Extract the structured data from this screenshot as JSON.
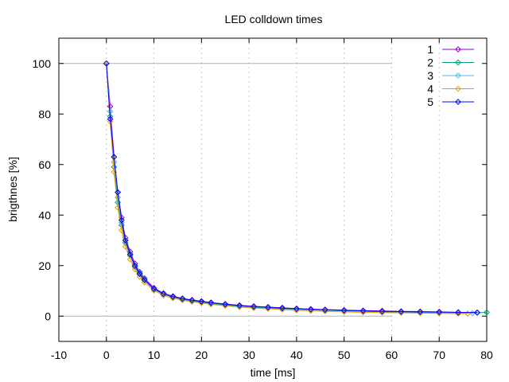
{
  "chart_data": {
    "type": "line",
    "title": "LED colldown times",
    "xlabel": "time [ms]",
    "ylabel": "brigthnes [%]",
    "xlim": [
      -10,
      80
    ],
    "ylim": [
      -10,
      110
    ],
    "xticks": [
      -10,
      0,
      10,
      20,
      30,
      40,
      50,
      60,
      70,
      80
    ],
    "yticks": [
      0,
      20,
      40,
      60,
      80,
      100
    ],
    "x_grid": "dotted",
    "y_reference_lines": [
      0,
      100
    ],
    "legend_position": "top-right",
    "marker": "diamond",
    "series": [
      {
        "name": "1",
        "color": "#9400d3",
        "x": [
          0,
          0.8,
          1.6,
          2.4,
          3.2,
          4.0,
          5.0,
          6.0,
          7.0,
          8.0,
          10,
          12,
          14,
          16,
          18,
          20,
          22,
          25,
          28,
          31,
          34,
          37,
          40,
          43,
          46,
          50,
          54,
          58,
          62,
          66,
          70,
          74,
          78
        ],
        "y": [
          100,
          83,
          63,
          49,
          39,
          31,
          25.5,
          20.8,
          17.5,
          15,
          11.2,
          9.1,
          7.9,
          7.0,
          6.4,
          5.9,
          5.4,
          4.8,
          4.3,
          3.9,
          3.6,
          3.3,
          3.0,
          2.8,
          2.6,
          2.4,
          2.2,
          2.1,
          1.9,
          1.8,
          1.7,
          1.5,
          1.4
        ]
      },
      {
        "name": "2",
        "color": "#009e73",
        "x": [
          0,
          0.8,
          1.6,
          2.4,
          3.2,
          4.0,
          5.0,
          6.0,
          7.0,
          8.0,
          10,
          12,
          14,
          16,
          18,
          20,
          22,
          25,
          28,
          31,
          34,
          37,
          40,
          43,
          46,
          50,
          54,
          58,
          62,
          66,
          70,
          74,
          80
        ],
        "y": [
          100,
          79,
          59,
          45,
          36,
          29,
          24,
          19.5,
          16.5,
          14.2,
          10.6,
          8.7,
          7.5,
          6.7,
          6.0,
          5.5,
          5.0,
          4.4,
          3.9,
          3.5,
          3.2,
          2.9,
          2.7,
          2.5,
          2.3,
          2.1,
          1.9,
          1.7,
          1.5,
          1.3,
          1.2,
          1.1,
          1.5
        ]
      },
      {
        "name": "3",
        "color": "#56b4e9",
        "x": [
          0,
          0.8,
          1.6,
          2.4,
          3.2,
          4.0,
          5.0,
          6.0,
          7.0,
          8.0,
          10,
          12,
          14,
          16,
          18,
          20,
          22,
          25,
          28,
          31,
          34,
          37,
          40,
          43,
          46,
          50,
          54,
          58,
          62,
          66,
          70,
          74,
          77
        ],
        "y": [
          100,
          81,
          61,
          47,
          37,
          30,
          24.5,
          20,
          17,
          14.6,
          10.9,
          8.9,
          7.7,
          6.9,
          6.2,
          5.7,
          5.2,
          4.6,
          4.1,
          3.7,
          3.4,
          3.1,
          2.8,
          2.6,
          2.4,
          2.2,
          2.0,
          1.8,
          1.7,
          1.6,
          1.4,
          1.3,
          1.2
        ]
      },
      {
        "name": "4",
        "color": "#e69f00",
        "x": [
          0,
          0.8,
          1.6,
          2.4,
          3.2,
          4.0,
          5.0,
          6.0,
          7.0,
          8.0,
          10,
          12,
          14,
          16,
          18,
          20,
          22,
          25,
          28,
          31,
          34,
          37,
          40,
          43,
          46,
          50,
          54,
          58,
          62,
          66,
          70,
          74,
          76
        ],
        "y": [
          100,
          77,
          57,
          43,
          34,
          27.5,
          22.5,
          18.5,
          15.6,
          13.4,
          10.1,
          8.2,
          7.1,
          6.3,
          5.7,
          5.2,
          4.7,
          4.1,
          3.6,
          3.2,
          2.9,
          2.6,
          2.3,
          2.1,
          1.9,
          1.7,
          1.5,
          1.4,
          1.3,
          1.2,
          1.1,
          1.0,
          1.0
        ]
      },
      {
        "name": "5",
        "color": "#0000ff",
        "x": [
          0,
          0.8,
          1.6,
          2.4,
          3.2,
          4.0,
          5.0,
          6.0,
          7.0,
          8.0,
          10,
          12,
          14,
          16,
          18,
          20,
          22,
          25,
          28,
          31,
          34,
          37,
          40,
          43,
          46,
          50,
          54,
          58,
          62,
          66,
          70,
          74,
          78
        ],
        "y": [
          100,
          78,
          63,
          49,
          38,
          30,
          24.5,
          20,
          16.8,
          14.4,
          10.8,
          8.8,
          7.7,
          6.9,
          6.3,
          5.8,
          5.3,
          4.7,
          4.2,
          3.8,
          3.5,
          3.2,
          2.9,
          2.7,
          2.5,
          2.3,
          2.1,
          1.9,
          1.8,
          1.7,
          1.6,
          1.5,
          1.4
        ]
      }
    ]
  }
}
